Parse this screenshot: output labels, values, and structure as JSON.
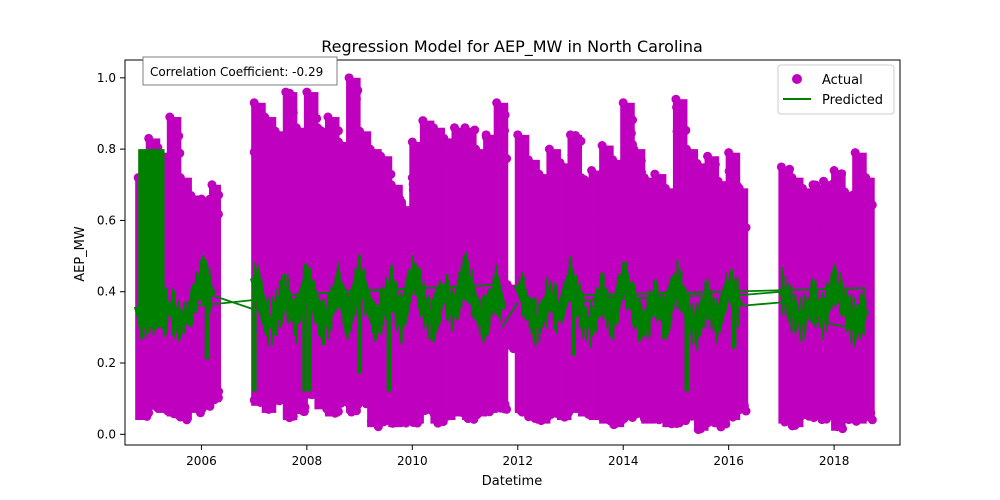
{
  "chart_data": {
    "type": "scatter",
    "title": "Regression Model for AEP_MW in North Carolina",
    "xlabel": "Datetime",
    "ylabel": "AEP_MW",
    "xlim": [
      2004.55,
      2019.25
    ],
    "ylim": [
      -0.03,
      1.05
    ],
    "x_ticks": [
      2006,
      2008,
      2010,
      2012,
      2014,
      2016,
      2018
    ],
    "y_ticks": [
      0.0,
      0.2,
      0.4,
      0.6,
      0.8,
      1.0
    ],
    "y_tick_labels": [
      "0.0",
      "0.2",
      "0.4",
      "0.6",
      "0.8",
      "1.0"
    ],
    "grid": false,
    "legend_position": "top-right",
    "annotation": "Correlation Coefficient: -0.29",
    "colors": {
      "actual": "#bf00bf",
      "predicted": "#008000"
    },
    "series": [
      {
        "name": "Actual",
        "kind": "scatter",
        "segments": [
          {
            "x": [
              2004.8,
              2005.0,
              2005.2,
              2005.4,
              2005.6,
              2005.8,
              2006.0,
              2006.2
            ],
            "low": [
              0.04,
              0.07,
              0.06,
              0.05,
              0.04,
              0.06,
              0.07,
              0.09
            ],
            "high": [
              0.72,
              0.83,
              0.79,
              0.89,
              0.72,
              0.67,
              0.66,
              0.7
            ]
          },
          {
            "x": [
              2007.0,
              2007.2,
              2007.4,
              2007.6,
              2007.8,
              2008.0,
              2008.2,
              2008.4,
              2008.6,
              2008.8,
              2009.0,
              2009.2,
              2009.4,
              2009.6,
              2009.8,
              2010.0
            ],
            "low": [
              0.08,
              0.06,
              0.09,
              0.04,
              0.06,
              0.1,
              0.07,
              0.05,
              0.08,
              0.06,
              0.08,
              0.02,
              0.03,
              0.02,
              0.03,
              0.05
            ],
            "high": [
              0.93,
              0.89,
              0.85,
              0.96,
              0.86,
              0.96,
              0.86,
              0.89,
              0.82,
              1.0,
              0.85,
              0.8,
              0.78,
              0.7,
              0.64,
              0.72
            ]
          },
          {
            "x": [
              2010.0,
              2010.2,
              2010.4,
              2010.6,
              2010.8,
              2011.0,
              2011.2,
              2011.4,
              2011.6,
              2011.8
            ],
            "low": [
              0.03,
              0.06,
              0.03,
              0.04,
              0.05,
              0.04,
              0.05,
              0.06,
              0.07,
              0.24
            ],
            "high": [
              0.82,
              0.88,
              0.86,
              0.83,
              0.86,
              0.86,
              0.8,
              0.84,
              0.93,
              0.42
            ]
          },
          {
            "x": [
              2012.0,
              2012.2,
              2012.4,
              2012.6,
              2012.8,
              2013.0,
              2013.2,
              2013.4,
              2013.6,
              2013.8,
              2014.0,
              2014.2,
              2014.4,
              2014.6,
              2014.8,
              2015.0,
              2015.2,
              2015.4,
              2015.6,
              2015.8,
              2016.0,
              2016.2
            ],
            "low": [
              0.06,
              0.04,
              0.03,
              0.05,
              0.04,
              0.06,
              0.05,
              0.04,
              0.03,
              0.02,
              0.04,
              0.05,
              0.03,
              0.04,
              0.02,
              0.03,
              0.05,
              0.01,
              0.03,
              0.02,
              0.04,
              0.06
            ],
            "high": [
              0.84,
              0.77,
              0.73,
              0.8,
              0.76,
              0.84,
              0.72,
              0.74,
              0.81,
              0.77,
              0.93,
              0.8,
              0.72,
              0.73,
              0.69,
              0.94,
              0.8,
              0.76,
              0.78,
              0.71,
              0.79,
              0.69
            ]
          },
          {
            "x": [
              2017.0,
              2017.2,
              2017.4,
              2017.6,
              2017.8,
              2018.0,
              2018.2,
              2018.4,
              2018.6
            ],
            "low": [
              0.03,
              0.02,
              0.05,
              0.04,
              0.04,
              0.01,
              0.04,
              0.03,
              0.04
            ],
            "high": [
              0.75,
              0.72,
              0.69,
              0.7,
              0.71,
              0.74,
              0.68,
              0.79,
              0.72
            ]
          }
        ]
      },
      {
        "name": "Predicted",
        "kind": "line",
        "segments": [
          {
            "x": [
              2004.8,
              2004.9,
              2005.0,
              2005.1,
              2005.2,
              2005.3,
              2005.4,
              2005.5,
              2005.6,
              2005.7,
              2005.8,
              2005.9,
              2006.0,
              2006.1,
              2006.2
            ],
            "y": [
              0.36,
              0.31,
              0.35,
              0.33,
              0.38,
              0.34,
              0.36,
              0.33,
              0.31,
              0.33,
              0.35,
              0.4,
              0.44,
              0.42,
              0.39
            ]
          },
          {
            "x": [
              2007.0,
              2007.1,
              2007.2,
              2007.3,
              2007.4,
              2007.5,
              2007.6,
              2007.7,
              2007.8,
              2007.9,
              2008.0,
              2008.1,
              2008.2,
              2008.3,
              2008.4,
              2008.5,
              2008.6,
              2008.7,
              2008.8,
              2008.9,
              2009.0,
              2009.1,
              2009.2,
              2009.3,
              2009.4,
              2009.5,
              2009.6,
              2009.7,
              2009.8,
              2009.9,
              2010.0
            ],
            "y": [
              0.44,
              0.4,
              0.33,
              0.31,
              0.33,
              0.37,
              0.4,
              0.35,
              0.32,
              0.38,
              0.43,
              0.4,
              0.34,
              0.31,
              0.33,
              0.37,
              0.42,
              0.36,
              0.32,
              0.39,
              0.45,
              0.4,
              0.35,
              0.31,
              0.34,
              0.38,
              0.42,
              0.36,
              0.32,
              0.38,
              0.46
            ]
          },
          {
            "x": [
              2010.0,
              2010.1,
              2010.2,
              2010.3,
              2010.4,
              2010.5,
              2010.6,
              2010.7,
              2010.8,
              2010.9,
              2011.0,
              2011.1,
              2011.2,
              2011.3,
              2011.4,
              2011.5,
              2011.6,
              2011.7
            ],
            "y": [
              0.46,
              0.42,
              0.37,
              0.33,
              0.32,
              0.36,
              0.41,
              0.37,
              0.34,
              0.4,
              0.45,
              0.41,
              0.36,
              0.32,
              0.33,
              0.37,
              0.41,
              0.35
            ]
          },
          {
            "x": [
              2012.0,
              2012.1,
              2012.2,
              2012.3,
              2012.4,
              2012.5,
              2012.6,
              2012.7,
              2012.8,
              2012.9,
              2013.0,
              2013.1,
              2013.2,
              2013.3,
              2013.4,
              2013.5,
              2013.6,
              2013.7,
              2013.8,
              2013.9,
              2014.0,
              2014.1,
              2014.2,
              2014.3,
              2014.4,
              2014.5,
              2014.6,
              2014.7,
              2014.8,
              2014.9,
              2015.0,
              2015.1,
              2015.2,
              2015.3,
              2015.4,
              2015.5,
              2015.6,
              2015.7,
              2015.8,
              2015.9,
              2016.0,
              2016.1,
              2016.2
            ],
            "y": [
              0.42,
              0.39,
              0.35,
              0.32,
              0.31,
              0.35,
              0.39,
              0.36,
              0.33,
              0.39,
              0.44,
              0.4,
              0.35,
              0.31,
              0.31,
              0.35,
              0.4,
              0.35,
              0.32,
              0.38,
              0.44,
              0.4,
              0.36,
              0.32,
              0.31,
              0.34,
              0.39,
              0.35,
              0.32,
              0.37,
              0.43,
              0.4,
              0.35,
              0.31,
              0.3,
              0.34,
              0.38,
              0.34,
              0.31,
              0.37,
              0.42,
              0.39,
              0.36
            ]
          },
          {
            "x": [
              2017.0,
              2017.1,
              2017.2,
              2017.3,
              2017.4,
              2017.5,
              2017.6,
              2017.7,
              2017.8,
              2017.9,
              2018.0,
              2018.1,
              2018.2,
              2018.3,
              2018.4,
              2018.5,
              2018.6
            ],
            "y": [
              0.41,
              0.38,
              0.35,
              0.33,
              0.32,
              0.35,
              0.38,
              0.35,
              0.33,
              0.38,
              0.42,
              0.4,
              0.36,
              0.33,
              0.31,
              0.33,
              0.35
            ]
          }
        ],
        "connectors": [
          {
            "x": [
              2006.2,
              2007.0
            ],
            "y": [
              0.39,
              0.35
            ]
          },
          {
            "x": [
              2005.9,
              2007.2
            ],
            "y": [
              0.36,
              0.38
            ]
          },
          {
            "x": [
              2007.5,
              2010.2
            ],
            "y": [
              0.39,
              0.41
            ]
          },
          {
            "x": [
              2008.6,
              2011.7
            ],
            "y": [
              0.4,
              0.42
            ]
          },
          {
            "x": [
              2011.7,
              2012.0
            ],
            "y": [
              0.3,
              0.37
            ]
          },
          {
            "x": [
              2012.4,
              2015.6
            ],
            "y": [
              0.37,
              0.39
            ]
          },
          {
            "x": [
              2016.2,
              2017.0
            ],
            "y": [
              0.39,
              0.4
            ]
          },
          {
            "x": [
              2013.2,
              2018.6
            ],
            "y": [
              0.39,
              0.41
            ]
          },
          {
            "x": [
              2016.2,
              2017.0
            ],
            "y": [
              0.36,
              0.37
            ]
          },
          {
            "x": [
              2017.6,
              2018.6
            ],
            "y": [
              0.32,
              0.29
            ]
          }
        ],
        "bands": [
          {
            "x": [
              2004.8,
              2005.3
            ],
            "low": 0.3,
            "high": 0.8
          }
        ],
        "spikes": [
          {
            "x": 2007.0,
            "low": 0.12,
            "high": 0.44
          },
          {
            "x": 2007.95,
            "low": 0.12,
            "high": 0.4
          },
          {
            "x": 2008.05,
            "low": 0.12,
            "high": 0.4
          },
          {
            "x": 2009.0,
            "low": 0.17,
            "high": 0.4
          },
          {
            "x": 2009.55,
            "low": 0.12,
            "high": 0.38
          },
          {
            "x": 2013.05,
            "low": 0.22,
            "high": 0.4
          },
          {
            "x": 2015.2,
            "low": 0.12,
            "high": 0.38
          },
          {
            "x": 2016.1,
            "low": 0.24,
            "high": 0.4
          },
          {
            "x": 2006.1,
            "low": 0.21,
            "high": 0.4
          }
        ]
      }
    ]
  }
}
